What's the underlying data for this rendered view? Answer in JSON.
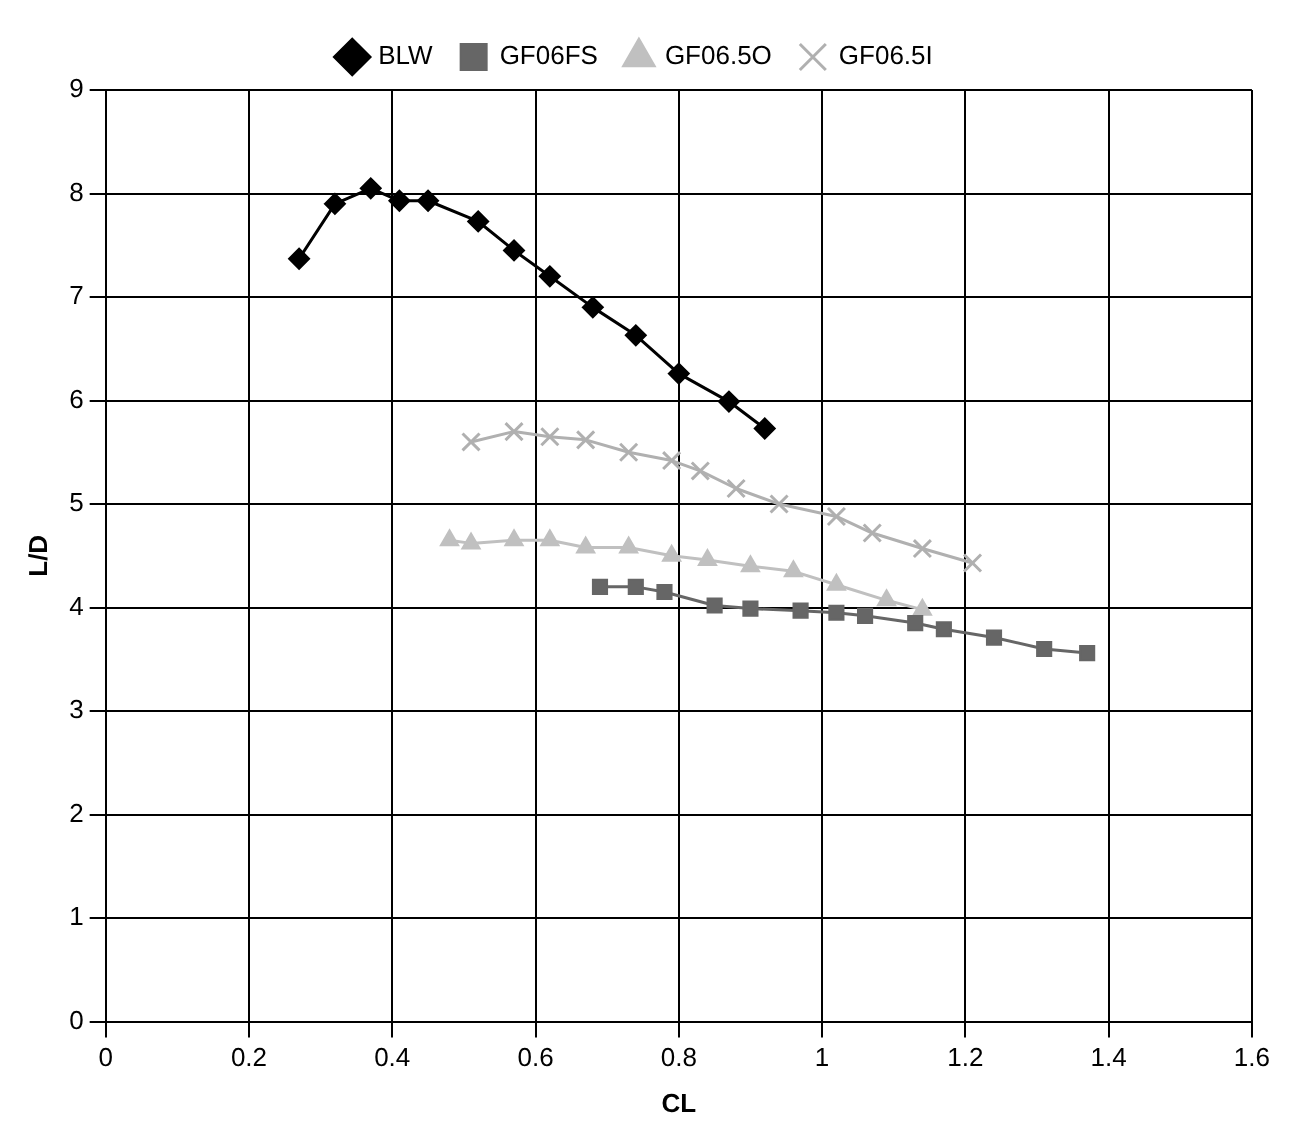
{
  "chart_data": {
    "type": "line",
    "xlabel": "CL",
    "ylabel": "L/D",
    "xlim": [
      0,
      1.6
    ],
    "xticks": [
      0,
      0.2,
      0.4,
      0.6,
      0.8,
      1,
      1.2,
      1.4,
      1.6
    ],
    "ylim": [
      0,
      9
    ],
    "yticks": [
      0,
      1,
      2,
      3,
      4,
      5,
      6,
      7,
      8,
      9
    ],
    "grid": true,
    "legend": "top",
    "line_style": "solid",
    "series": [
      {
        "name": "BLW",
        "color": "#000000",
        "marker": "diamond",
        "x": [
          0.27,
          0.32,
          0.37,
          0.41,
          0.45,
          0.52,
          0.57,
          0.62,
          0.68,
          0.74,
          0.8,
          0.87,
          0.92
        ],
        "values": [
          7.37,
          7.9,
          8.05,
          7.93,
          7.93,
          7.73,
          7.45,
          7.2,
          6.9,
          6.63,
          6.26,
          5.99,
          5.73
        ]
      },
      {
        "name": "GF06FS",
        "color": "#666666",
        "marker": "square",
        "x": [
          0.69,
          0.74,
          0.78,
          0.85,
          0.9,
          0.97,
          1.02,
          1.06,
          1.13,
          1.17,
          1.24,
          1.31,
          1.37
        ],
        "values": [
          4.2,
          4.2,
          4.15,
          4.02,
          3.99,
          3.97,
          3.95,
          3.92,
          3.85,
          3.79,
          3.71,
          3.6,
          3.56
        ]
      },
      {
        "name": "GF06.5O",
        "color": "#c0c0c0",
        "marker": "triangle",
        "x": [
          0.48,
          0.51,
          0.57,
          0.62,
          0.67,
          0.73,
          0.79,
          0.84,
          0.9,
          0.96,
          1.02,
          1.09,
          1.14
        ],
        "values": [
          4.65,
          4.62,
          4.65,
          4.65,
          4.58,
          4.58,
          4.5,
          4.46,
          4.4,
          4.35,
          4.22,
          4.07,
          3.98
        ]
      },
      {
        "name": "GF06.5I",
        "color": "#b0b0b0",
        "marker": "cross",
        "x": [
          0.51,
          0.57,
          0.62,
          0.67,
          0.73,
          0.79,
          0.83,
          0.88,
          0.94,
          1.02,
          1.07,
          1.14,
          1.21
        ],
        "values": [
          5.6,
          5.7,
          5.65,
          5.62,
          5.5,
          5.42,
          5.32,
          5.15,
          5.0,
          4.88,
          4.72,
          4.57,
          4.43
        ]
      }
    ]
  }
}
